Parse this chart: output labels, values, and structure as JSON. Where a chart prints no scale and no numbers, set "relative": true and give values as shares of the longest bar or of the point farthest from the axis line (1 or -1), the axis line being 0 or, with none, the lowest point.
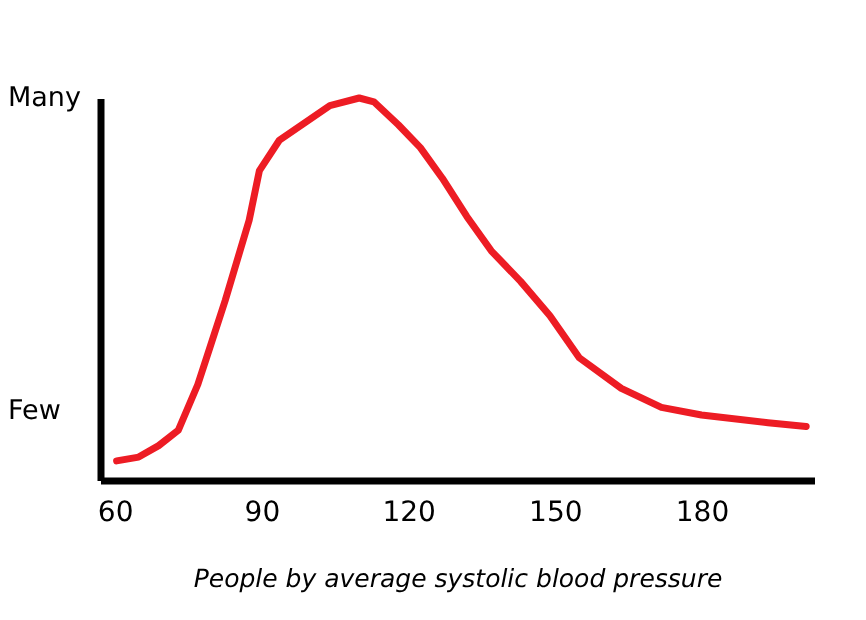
{
  "chart_data": {
    "type": "line",
    "relative": true,
    "xlabel": "People by average systolic blood pressure",
    "annotations": [
      "Many",
      "Few"
    ],
    "xlim": [
      57,
      203
    ],
    "xticks": [
      60,
      90,
      120,
      150,
      180
    ],
    "x": [
      60.4,
      64.9,
      69,
      73,
      77,
      79.3,
      82.6,
      87.5,
      89.6,
      93.7,
      104,
      110,
      113,
      118,
      122.5,
      127,
      132,
      137,
      143,
      149,
      155,
      163.6,
      171.8,
      180,
      193.6,
      201.4
    ],
    "series": [
      {
        "color": "#ed1c24",
        "values": [
          0.05,
          0.06,
          0.09,
          0.13,
          0.25,
          0.34,
          0.47,
          0.68,
          0.81,
          0.89,
          0.98,
          1.0,
          0.99,
          0.93,
          0.87,
          0.79,
          0.69,
          0.6,
          0.52,
          0.43,
          0.32,
          0.24,
          0.19,
          0.17,
          0.15,
          0.14
        ]
      }
    ],
    "grid": false,
    "marker": "none",
    "line_style": "solid"
  }
}
